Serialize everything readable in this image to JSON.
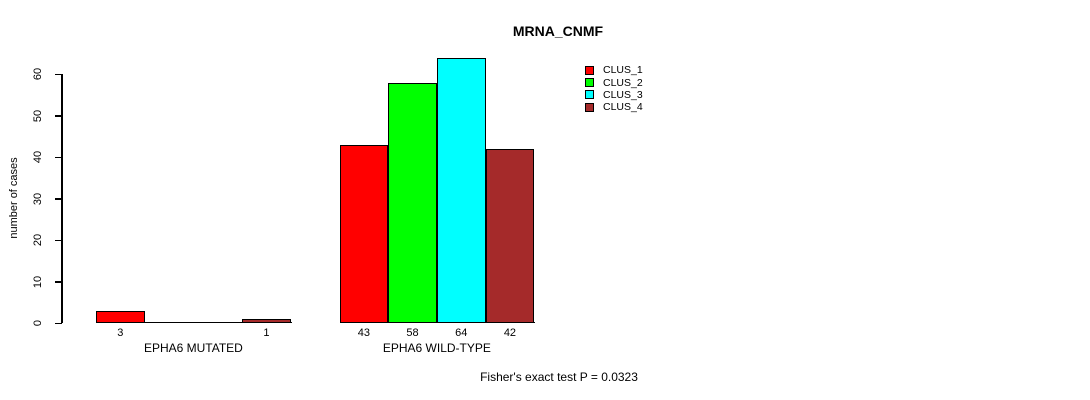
{
  "chart_data": {
    "type": "bar",
    "title": "MRNA_CNMF",
    "ylabel": "number of cases",
    "xlabel": "",
    "ylim": [
      0,
      60
    ],
    "yticks": [
      0,
      10,
      20,
      30,
      40,
      50,
      60
    ],
    "grid": false,
    "legend_position": "top-right",
    "categories": [
      "EPHA6 MUTATED",
      "EPHA6 WILD-TYPE"
    ],
    "series": [
      {
        "name": "CLUS_1",
        "color": "#ff0000",
        "values": [
          3,
          43
        ]
      },
      {
        "name": "CLUS_2",
        "color": "#00ff00",
        "values": [
          0,
          58
        ]
      },
      {
        "name": "CLUS_3",
        "color": "#00ffff",
        "values": [
          0,
          64
        ]
      },
      {
        "name": "CLUS_4",
        "color": "#a52a2a",
        "values": [
          1,
          42
        ]
      }
    ],
    "bar_value_labels": [
      [
        "3",
        "",
        "",
        "1"
      ],
      [
        "43",
        "58",
        "64",
        "42"
      ]
    ],
    "annotation": "Fisher's exact test P = 0.0323",
    "colors": {
      "axis": "#000000",
      "text": "#000000",
      "background": "#ffffff"
    }
  }
}
